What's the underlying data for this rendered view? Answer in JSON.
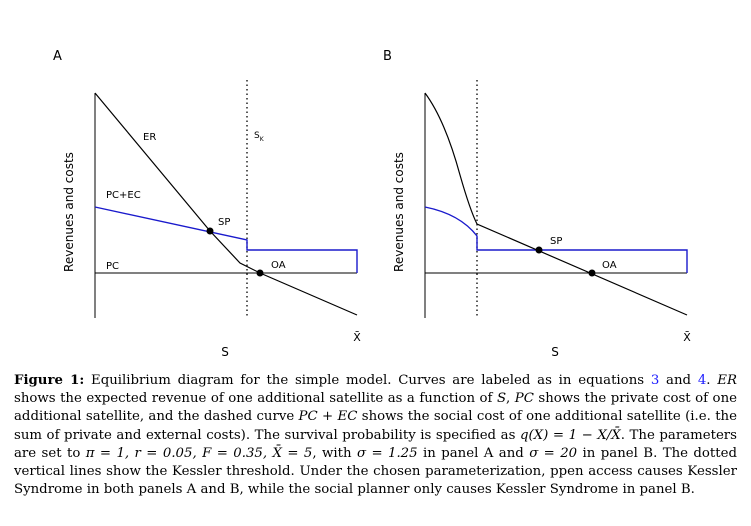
{
  "panels": [
    {
      "id": "A",
      "panel_label": "A",
      "ylabel": "Revenues and costs",
      "xlabel": "S",
      "xmax_label": "X̄",
      "threshold_label": "S",
      "threshold_sub": "K",
      "labels": {
        "er": "ER",
        "pcec": "PC+EC",
        "pc": "PC",
        "sp": "SP",
        "oa": "OA"
      }
    },
    {
      "id": "B",
      "panel_label": "B",
      "ylabel": "Revenues and costs",
      "xlabel": "S",
      "xmax_label": "X̄",
      "labels": {
        "sp": "SP",
        "oa": "OA"
      }
    }
  ],
  "colors": {
    "er": "#000000",
    "pcec": "#1a1acc",
    "pc": "#000000",
    "threshold": "#000000"
  },
  "caption": {
    "label": "Figure 1:",
    "t1": " Equilibrium diagram for the simple model. Curves are labeled as in equations ",
    "ref1": "3",
    "t2": " and ",
    "ref2": "4",
    "t3": ". ",
    "er": "ER",
    "t4": " shows the expected revenue of one additional satellite as a function of ",
    "s": "S",
    "t5": ", ",
    "pc": "PC",
    "t6": " shows the private cost of one additional satellite, and the dashed curve ",
    "pcec": "PC + EC",
    "t7": " shows the social cost of one additional satellite (i.e. the sum of private and external costs). The survival probability is specified as ",
    "q": "q(X) = 1 − X/X̄",
    "t8": ". The parameters are set to ",
    "params": "π = 1, r = 0.05, F = 0.35, X̄ = 5",
    "t9": ", with ",
    "sigA": "σ = 1.25",
    "t10": " in panel A and ",
    "sigB": "σ = 20",
    "t11": " in panel B. The dotted vertical lines show the Kessler threshold. Under the chosen parameterization, ppen access causes Kessler Syndrome in both panels A and B, while the social planner only causes Kessler Syndrome in panel B."
  }
}
